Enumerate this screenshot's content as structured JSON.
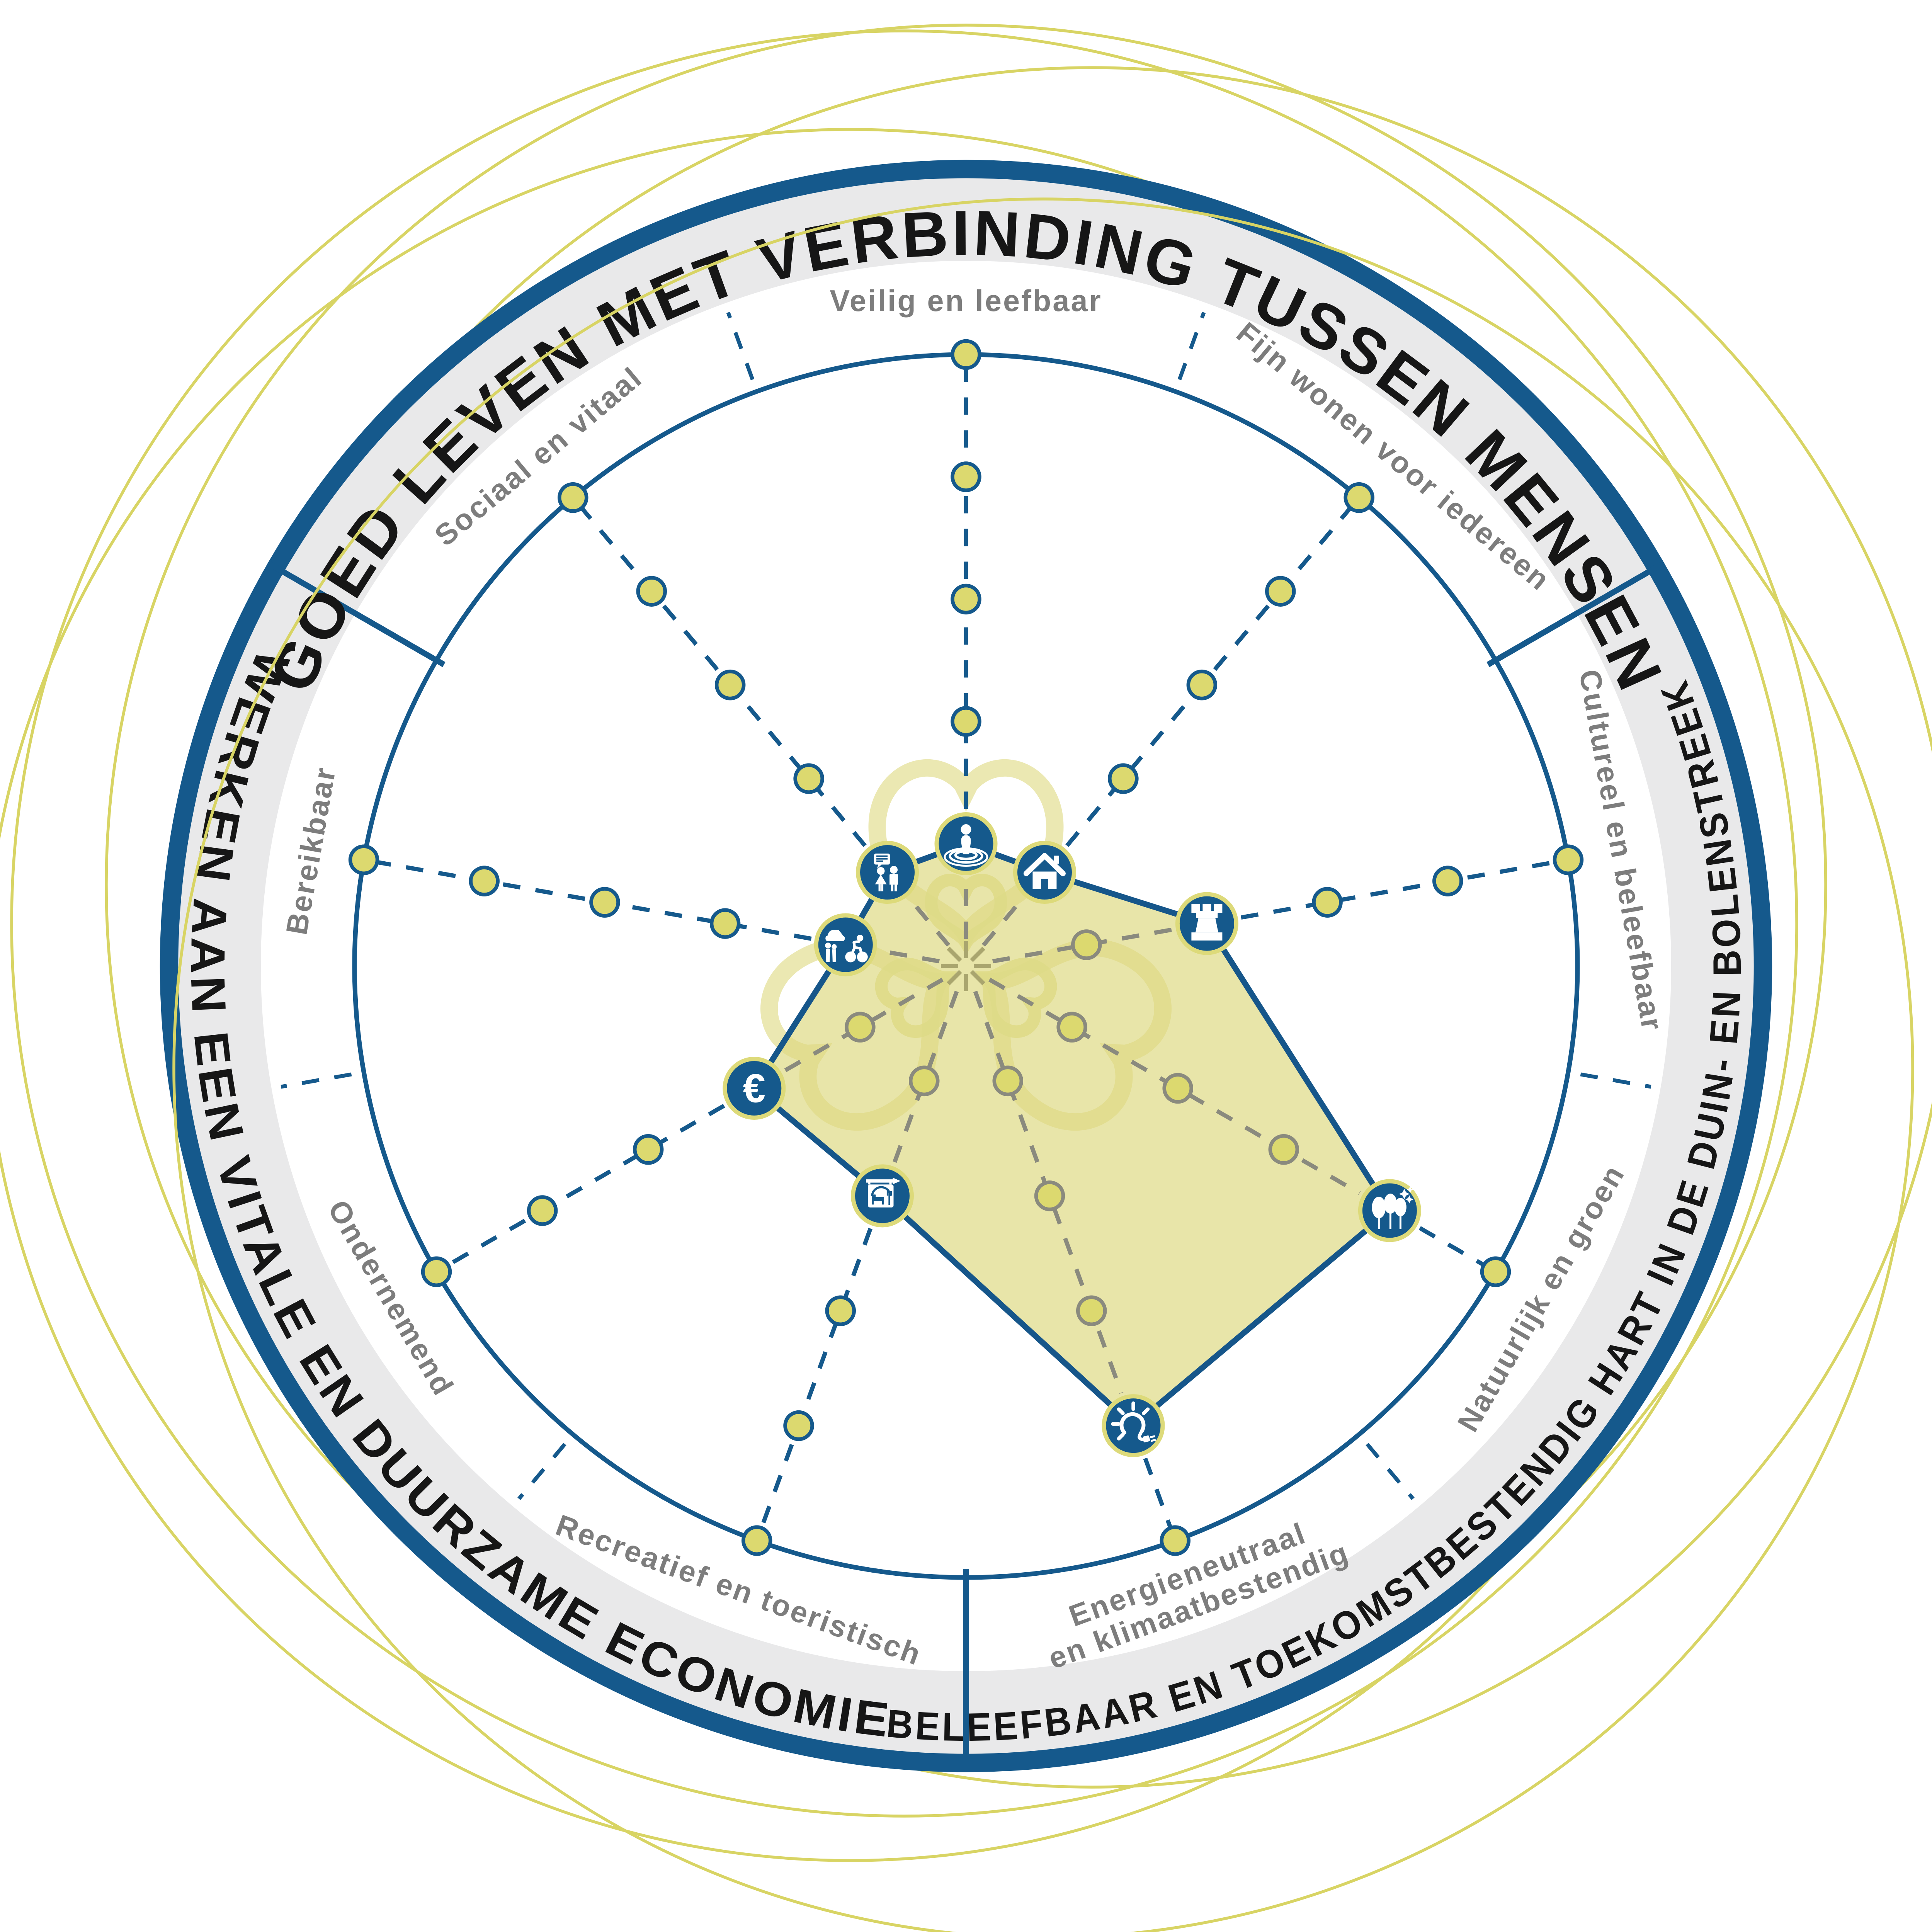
{
  "chart_data": {
    "type": "radar",
    "title": "",
    "scale": {
      "min": 0,
      "max": 5,
      "step": 1
    },
    "legend_position": "none",
    "grid": "radial-dots",
    "sectors": [
      {
        "label": "GOED LEVEN MET VERBINDING TUSSEN MENSEN",
        "span_deg": [
          210,
          330
        ]
      },
      {
        "label": "BELEEFBAAR EN TOEKOMSTBESTENDIG HART IN DE DUIN- EN BOLENSTREEK",
        "span_deg": [
          330,
          450
        ]
      },
      {
        "label": "WERKEN AAN EEN VITALE EN  DUURZAME ECONOMIE",
        "span_deg": [
          90,
          210
        ]
      }
    ],
    "categories": [
      {
        "label": "Veilig en leefbaar",
        "angle_deg": -90,
        "value": 1,
        "icon": "person-target"
      },
      {
        "label": "Fijn wonen voor iedereen",
        "angle_deg": -50,
        "value": 1,
        "icon": "house"
      },
      {
        "label": "Cultureel en beleefbaar",
        "angle_deg": -10,
        "value": 2,
        "icon": "castle-tower"
      },
      {
        "label": "Natuurlijk en groen",
        "angle_deg": 30,
        "value": 4,
        "icon": "trees-stars"
      },
      {
        "label": [
          "Energieneutraal",
          "en klimaatbestendig"
        ],
        "angle_deg": 70,
        "value": 4,
        "icon": "lightbulb-plug"
      },
      {
        "label": "Recreatief en toeristisch",
        "angle_deg": 110,
        "value": 2,
        "icon": "lodging-sign"
      },
      {
        "label": "Ondernemend",
        "angle_deg": 150,
        "value": 2,
        "icon": "euro"
      },
      {
        "label": "Bereikbaar",
        "angle_deg": 190,
        "value": 1,
        "icon": "car-bicycle"
      },
      {
        "label": "Sociaal en vitaal",
        "angle_deg": 230,
        "value": 1,
        "icon": "people-talking"
      }
    ],
    "colors": {
      "blue": "#15598c",
      "band_gray": "#e9e9ea",
      "arc_text": "#161616",
      "label_gray": "#7d7d7d",
      "dot_fill": "#dcd96f",
      "dot_stroke_out": "#15598c",
      "dot_stroke_in": "#8a8a7e",
      "polygon_fill": "#e8e5a9",
      "polygon_stroke": "#16568a",
      "flower": "#ddd87f",
      "flower_center": "#9a9660",
      "deco_yellow": "#d8d464",
      "icon_ring": "#ddda7a",
      "icon_fill": "#15598c",
      "icon_glyph": "#ffffff"
    }
  }
}
